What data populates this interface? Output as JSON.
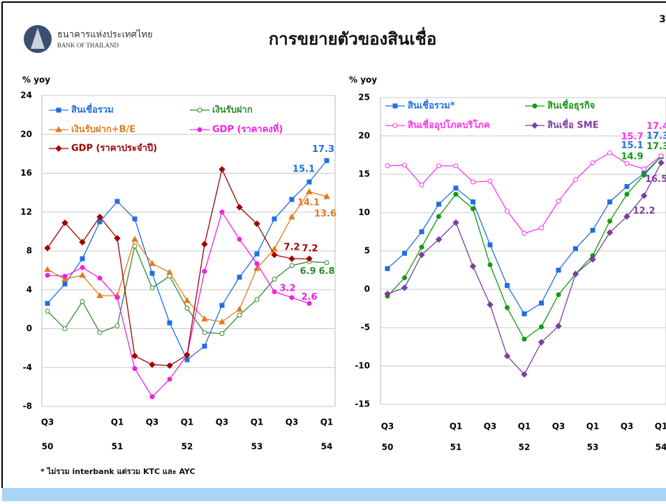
{
  "header": {
    "page_number": "3",
    "bank_name_th": "ธนาคารแห่งประเทศไทย",
    "bank_name_en": "BANK OF THAILAND",
    "title": "การขยายตัวของสินเชื่อ"
  },
  "footnote": "* ไม่รวม interbank  แต่รวม KTC และ AYC",
  "chart_data": [
    {
      "type": "line",
      "y_label": "% yoy",
      "categories": [
        "Q3",
        null,
        null,
        null,
        "Q1",
        null,
        "Q3",
        null,
        "Q1",
        null,
        "Q3",
        null,
        "Q1",
        null,
        "Q3",
        null,
        "Q1"
      ],
      "year_labels": [
        "50",
        "51",
        "52",
        "53",
        "54"
      ],
      "ylim": [
        -8,
        24
      ],
      "yticks": [
        -8,
        -4,
        0,
        4,
        8,
        12,
        16,
        20,
        24
      ],
      "grid": true,
      "series": [
        {
          "name": "สินเชื่อรวม",
          "color": "#1f6fe0",
          "marker": "square",
          "labeled_points": [
            15,
            16
          ],
          "values": [
            2.6,
            4.6,
            7.2,
            11.0,
            13.1,
            11.3,
            5.7,
            0.6,
            -3.2,
            -1.8,
            2.4,
            5.3,
            7.7,
            11.3,
            13.3,
            15.1,
            17.3
          ]
        },
        {
          "name": "เงินรับฝาก",
          "color": "#2e8b2e",
          "marker": "open-circle",
          "labeled_points": [
            15,
            16
          ],
          "values": [
            1.8,
            0,
            2.8,
            -0.4,
            0.3,
            8.5,
            4.2,
            5.4,
            2.1,
            -0.4,
            -0.5,
            1.4,
            3.0,
            5.1,
            6.5,
            6.9,
            6.8
          ]
        },
        {
          "name": "เงินรับฝาก+B/E",
          "color": "#e07b20",
          "marker": "triangle",
          "labeled_points": [
            15,
            16
          ],
          "values": [
            6.1,
            5.1,
            5.5,
            3.4,
            3.4,
            9.2,
            6.7,
            5.8,
            2.9,
            1.0,
            0.7,
            2.0,
            6.2,
            8.2,
            11.5,
            14.1,
            13.6
          ]
        },
        {
          "name": "GDP (ราคาคงที่)",
          "color": "#f020e8",
          "marker": "circle",
          "labeled_points": [
            14,
            15
          ],
          "values": [
            5.5,
            5.4,
            6.3,
            5.2,
            3.2,
            -4.1,
            -7.0,
            -5.2,
            -2.7,
            5.9,
            12.0,
            9.2,
            6.7,
            3.8,
            3.2,
            2.6,
            null
          ]
        },
        {
          "name": "GDP (ราคาประจำปี)",
          "color": "#a00000",
          "marker": "diamond",
          "labeled_points": [
            14,
            15
          ],
          "values": [
            8.3,
            10.9,
            8.9,
            11.5,
            9.3,
            -2.8,
            -3.7,
            -3.8,
            -2.7,
            8.7,
            16.4,
            12.5,
            10.8,
            7.6,
            7.2,
            7.2,
            null
          ]
        }
      ]
    },
    {
      "type": "line",
      "y_label": "% yoy",
      "categories": [
        "Q3",
        null,
        null,
        null,
        "Q1",
        null,
        "Q3",
        null,
        "Q1",
        null,
        "Q3",
        null,
        "Q1",
        null,
        "Q3",
        null,
        "Q1"
      ],
      "year_labels": [
        "50",
        "51",
        "52",
        "53",
        "54"
      ],
      "ylim": [
        -15,
        25
      ],
      "yticks": [
        -15,
        -10,
        -5,
        0,
        5,
        10,
        15,
        20,
        25
      ],
      "grid": true,
      "series": [
        {
          "name": "สินเชื่อรวม*",
          "color": "#1f6fe0",
          "marker": "square",
          "labeled_points": [
            15,
            16
          ],
          "values": [
            2.7,
            4.7,
            7.5,
            11.1,
            13.2,
            11.4,
            5.8,
            0.5,
            -3.2,
            -1.8,
            2.5,
            5.3,
            7.7,
            11.4,
            13.4,
            15.1,
            17.3
          ]
        },
        {
          "name": "สินเชื่อธุรกิจ",
          "color": "#119a11",
          "marker": "circle",
          "labeled_points": [
            15,
            16
          ],
          "values": [
            -0.9,
            1.5,
            5.5,
            9.5,
            12.4,
            10.5,
            3.2,
            -2.4,
            -6.5,
            -4.9,
            -0.7,
            2.0,
            4.4,
            8.9,
            12.4,
            14.9,
            17.3
          ]
        },
        {
          "name": "สินเชื่ออุปโภคบริโภค",
          "color": "#ff33ee",
          "marker": "open-circle",
          "labeled_points": [
            15,
            16
          ],
          "values": [
            16.1,
            16.2,
            13.6,
            16.1,
            16.1,
            14.0,
            14.1,
            10.2,
            7.3,
            8.0,
            11.5,
            14.3,
            16.5,
            17.8,
            16.4,
            15.7,
            17.4
          ]
        },
        {
          "name": "สินเชื่อ SME",
          "color": "#7b3f9e",
          "marker": "diamond",
          "labeled_points": [
            15,
            16
          ],
          "values": [
            -0.6,
            0.2,
            4.5,
            6.5,
            8.7,
            3.0,
            -2.0,
            -8.7,
            -11.1,
            -6.9,
            -4.8,
            2.0,
            3.9,
            7.4,
            9.5,
            12.2,
            16.5
          ]
        }
      ]
    }
  ]
}
